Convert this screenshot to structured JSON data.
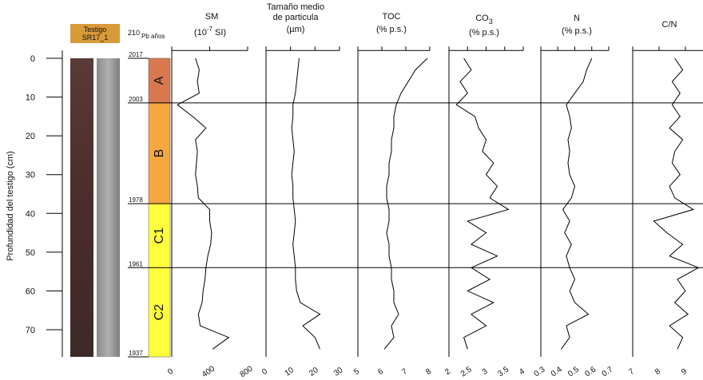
{
  "figure": {
    "core_label": [
      "Testigo",
      "SR17_1"
    ],
    "age_header": [
      "210",
      "Pb años"
    ],
    "depth_label": "Profundidad del testigo (cm)",
    "ylim": [
      -2,
      77
    ],
    "yticks": [
      0,
      10,
      20,
      30,
      40,
      50,
      60,
      70
    ],
    "zones": [
      {
        "label": "A",
        "from": 0,
        "to": 11.5,
        "color": "#d9774f"
      },
      {
        "label": "B",
        "from": 11.5,
        "to": 37.5,
        "color": "#f5a742"
      },
      {
        "label": "C1",
        "from": 37.5,
        "to": 54,
        "color": "#ffff3c"
      },
      {
        "label": "C2",
        "from": 54,
        "to": 77,
        "color": "#ffff3c"
      }
    ],
    "dates": [
      {
        "label": "2017",
        "depth": 0
      },
      {
        "label": "2003",
        "depth": 11.5
      },
      {
        "label": "1978",
        "depth": 37.5
      },
      {
        "label": "1961",
        "depth": 54
      },
      {
        "label": "1937",
        "depth": 77
      }
    ]
  },
  "chart_data": [
    {
      "type": "profile",
      "title": "SM",
      "unit": [
        "(10",
        "-7",
        " SI)"
      ],
      "xlim": [
        0,
        800
      ],
      "xticks": [
        0,
        400,
        800
      ],
      "color": "#000000",
      "depth": [
        0,
        3,
        6,
        9,
        12,
        15,
        18,
        21,
        24,
        27,
        30,
        33,
        36,
        39,
        42,
        45,
        48,
        51,
        54,
        57,
        60,
        63,
        66,
        69,
        72,
        75
      ],
      "values": [
        250,
        290,
        270,
        290,
        60,
        220,
        360,
        250,
        270,
        260,
        250,
        270,
        280,
        400,
        400,
        420,
        410,
        380,
        360,
        350,
        330,
        320,
        280,
        300,
        600,
        430
      ]
    },
    {
      "type": "profile",
      "title": [
        "Tamaño medio",
        "de particula"
      ],
      "unit": "(µm)",
      "xlim": [
        0,
        30
      ],
      "xticks": [
        0,
        10,
        20,
        30
      ],
      "color": "#000000",
      "depth": [
        0,
        3,
        6,
        9,
        12,
        15,
        18,
        21,
        24,
        27,
        30,
        33,
        36,
        39,
        42,
        45,
        48,
        51,
        54,
        57,
        60,
        63,
        66,
        69,
        72,
        75
      ],
      "values": [
        13.5,
        13,
        12.5,
        12,
        11,
        11,
        10.5,
        11,
        11.5,
        11,
        10.5,
        11,
        11,
        11.5,
        12,
        11.5,
        11,
        11.5,
        12,
        12,
        12.5,
        14,
        22,
        15,
        20,
        22
      ]
    },
    {
      "type": "profile",
      "title": "TOC",
      "unit": "(% p.s.)",
      "xlim": [
        5,
        8
      ],
      "xticks": [
        5,
        6,
        7,
        8
      ],
      "color": "#000000",
      "depth": [
        0,
        3,
        6,
        9,
        12,
        15,
        18,
        21,
        24,
        27,
        30,
        33,
        36,
        39,
        42,
        45,
        48,
        51,
        54,
        57,
        60,
        63,
        66,
        69,
        72,
        75
      ],
      "values": [
        7.9,
        7.4,
        7.1,
        6.8,
        6.6,
        6.5,
        6.5,
        6.4,
        6.4,
        6.3,
        6.3,
        6.2,
        6.2,
        6.3,
        6.3,
        6.2,
        6.3,
        6.3,
        6.4,
        6.4,
        6.5,
        6.5,
        6.7,
        6.4,
        6.5,
        6.1
      ]
    },
    {
      "type": "profile",
      "title": [
        "CO",
        "3"
      ],
      "unit": "(% p.s.)",
      "xlim": [
        2,
        4
      ],
      "xticks": [
        2,
        2.5,
        3,
        3.5,
        4
      ],
      "color": "#000000",
      "depth": [
        0,
        3,
        6,
        9,
        12,
        15,
        18,
        21,
        24,
        27,
        30,
        33,
        36,
        39,
        42,
        45,
        48,
        51,
        54,
        57,
        60,
        63,
        66,
        69,
        72,
        75
      ],
      "values": [
        2.4,
        2.6,
        2.3,
        2.5,
        2.2,
        2.7,
        2.8,
        3.0,
        2.9,
        3.2,
        3.0,
        3.3,
        3.1,
        3.6,
        2.5,
        3.0,
        2.6,
        3.3,
        2.6,
        3.1,
        2.5,
        3.2,
        2.6,
        3.0,
        2.4,
        2.5
      ]
    },
    {
      "type": "profile",
      "title": "N",
      "unit": "(% p.s.)",
      "xlim": [
        0.3,
        0.7
      ],
      "xticks": [
        0.3,
        0.4,
        0.5,
        0.6,
        0.7
      ],
      "color": "#000000",
      "depth": [
        0,
        3,
        6,
        9,
        12,
        15,
        18,
        21,
        24,
        27,
        30,
        33,
        36,
        39,
        42,
        45,
        48,
        51,
        54,
        57,
        60,
        63,
        66,
        69,
        72,
        75
      ],
      "values": [
        0.6,
        0.57,
        0.55,
        0.5,
        0.45,
        0.47,
        0.48,
        0.46,
        0.47,
        0.46,
        0.47,
        0.5,
        0.48,
        0.43,
        0.47,
        0.44,
        0.48,
        0.45,
        0.47,
        0.5,
        0.47,
        0.5,
        0.58,
        0.45,
        0.47,
        0.42
      ]
    },
    {
      "type": "profile",
      "title": "C/N",
      "xlim": [
        7,
        9.7
      ],
      "xticks": [
        7,
        8,
        9
      ],
      "color": "#000000",
      "depth": [
        0,
        3,
        6,
        9,
        12,
        15,
        18,
        21,
        24,
        27,
        30,
        33,
        36,
        39,
        42,
        45,
        48,
        51,
        54,
        57,
        60,
        63,
        66,
        69,
        72,
        75
      ],
      "values": [
        8.6,
        8.9,
        8.5,
        8.8,
        8.5,
        8.8,
        8.4,
        8.9,
        8.6,
        8.5,
        8.8,
        8.4,
        8.6,
        9.3,
        7.8,
        8.3,
        8.9,
        8.4,
        9.5,
        8.7,
        9.0,
        8.6,
        9.1,
        8.4,
        8.9,
        8.7
      ]
    }
  ]
}
